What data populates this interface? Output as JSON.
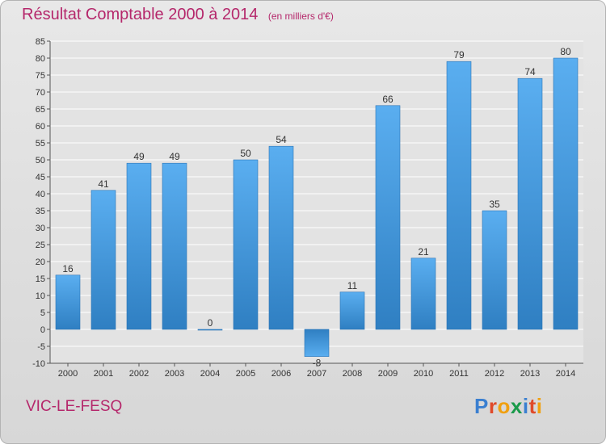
{
  "header": {
    "title": "Résultat Comptable 2000 à 2014",
    "subtitle": "(en milliers d'€)"
  },
  "footer": {
    "place": "VIC-LE-FESQ",
    "brand_letters": [
      "P",
      "r",
      "o",
      "x",
      "i",
      "t",
      "i"
    ],
    "brand_colors": [
      "#3a7fd0",
      "#e04a2a",
      "#f0a010",
      "#1a9a4a",
      "#3a7fd0",
      "#e04a2a",
      "#f0a010"
    ]
  },
  "colors": {
    "title": "#b5276b",
    "bar_light": "#5aaef0",
    "bar_dark": "#2f7fc2",
    "grid": "#ffffff",
    "axis": "#555555"
  },
  "chart_data": {
    "type": "bar",
    "title": "Résultat Comptable 2000 à 2014",
    "unit": "(en milliers d'€)",
    "categories": [
      "2000",
      "2001",
      "2002",
      "2003",
      "2004",
      "2005",
      "2006",
      "2007",
      "2008",
      "2009",
      "2010",
      "2011",
      "2012",
      "2013",
      "2014"
    ],
    "values": [
      16,
      41,
      49,
      49,
      0,
      50,
      54,
      -8,
      11,
      66,
      21,
      79,
      35,
      74,
      80
    ],
    "ylim": [
      -10,
      85
    ],
    "yticks": [
      -10,
      -5,
      0,
      5,
      10,
      15,
      20,
      25,
      30,
      35,
      40,
      45,
      50,
      55,
      60,
      65,
      70,
      75,
      80,
      85
    ],
    "grid": true,
    "legend": "none"
  }
}
